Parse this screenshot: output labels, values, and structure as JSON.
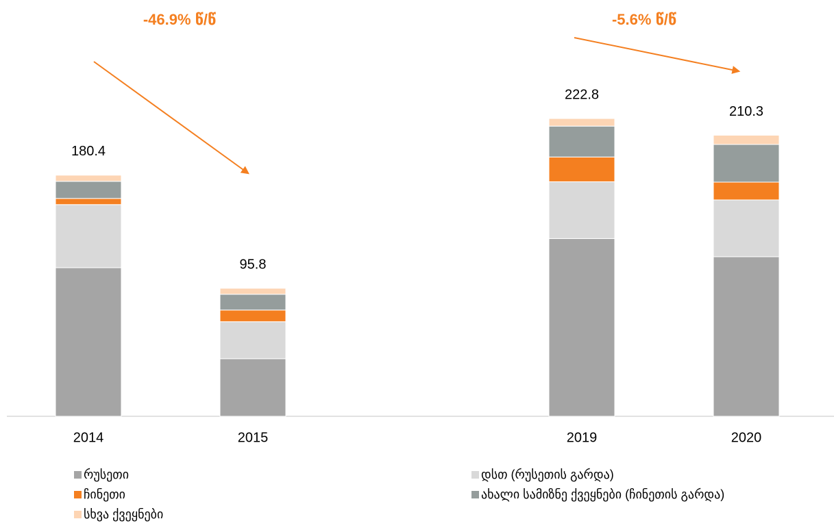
{
  "chart_data": {
    "type": "stacked_bar",
    "categories": [
      "2014",
      "2015",
      null,
      "2019",
      "2020"
    ],
    "series": [
      {
        "name": "რუსეთი",
        "color": "#a5a5a5",
        "values": [
          111.2,
          43.1,
          null,
          133.0,
          119.4
        ]
      },
      {
        "name": "დსთ (რუსეთის გარდა)",
        "color": "#d9d9d9",
        "values": [
          47.2,
          27.7,
          null,
          42.5,
          42.5
        ]
      },
      {
        "name": "ჩინეთი",
        "color": "#f47f20",
        "values": [
          4.6,
          8.7,
          null,
          18.5,
          13.3
        ]
      },
      {
        "name": "ახალი სამიზნე ქვეყნები (ჩინეთის გარდა)",
        "color": "#959d9c",
        "values": [
          12.8,
          11.8,
          null,
          23.1,
          28.2
        ]
      },
      {
        "name": "სხვა ქვეყნები",
        "color": "#fdd5b4",
        "values": [
          4.6,
          4.5,
          null,
          5.7,
          6.9
        ]
      }
    ],
    "totals": [
      180.4,
      95.8,
      null,
      222.8,
      210.3
    ],
    "annotations": [
      "-46.9% წ/წ",
      "-5.6% წ/წ"
    ],
    "ylim": [
      0,
      250
    ]
  }
}
